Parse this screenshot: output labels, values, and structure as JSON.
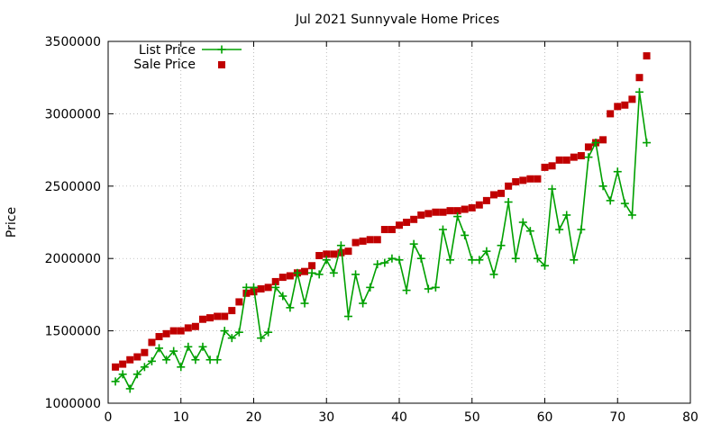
{
  "chart_data": {
    "type": "scatter",
    "title": "Jul 2021 Sunnyvale Home Prices",
    "xlabel": "",
    "ylabel": "Price",
    "xlim": [
      0,
      80
    ],
    "ylim": [
      1000000,
      3500000
    ],
    "x_ticks": [
      0,
      10,
      20,
      30,
      40,
      50,
      60,
      70,
      80
    ],
    "y_ticks": [
      1000000,
      1500000,
      2000000,
      2500000,
      3000000,
      3500000
    ],
    "x_tick_labels": [
      "0",
      "10",
      "20",
      "30",
      "40",
      "50",
      "60",
      "70",
      "80"
    ],
    "y_tick_labels": [
      "1000000",
      "1500000",
      "2000000",
      "2500000",
      "3000000",
      "3500000"
    ],
    "grid": true,
    "legend_position": "top-left",
    "series": [
      {
        "name": "List Price",
        "style": "lines-points",
        "color": "#00a000",
        "x": [
          1,
          2,
          3,
          4,
          5,
          6,
          7,
          8,
          9,
          10,
          11,
          12,
          13,
          14,
          15,
          16,
          17,
          18,
          19,
          20,
          21,
          22,
          23,
          24,
          25,
          26,
          27,
          28,
          29,
          30,
          31,
          32,
          33,
          34,
          35,
          36,
          37,
          38,
          39,
          40,
          41,
          42,
          43,
          44,
          45,
          46,
          47,
          48,
          49,
          50,
          51,
          52,
          53,
          54,
          55,
          56,
          57,
          58,
          59,
          60,
          61,
          62,
          63,
          64,
          65,
          66,
          67,
          68,
          69,
          70,
          71,
          72,
          73,
          74
        ],
        "values": [
          1150000,
          1200000,
          1100000,
          1200000,
          1250000,
          1290000,
          1380000,
          1300000,
          1360000,
          1250000,
          1390000,
          1300000,
          1390000,
          1300000,
          1300000,
          1500000,
          1450000,
          1490000,
          1800000,
          1800000,
          1450000,
          1490000,
          1800000,
          1740000,
          1660000,
          1900000,
          1690000,
          1900000,
          1890000,
          1990000,
          1900000,
          2090000,
          1600000,
          1890000,
          1690000,
          1800000,
          1960000,
          1970000,
          2000000,
          1990000,
          1780000,
          2100000,
          2000000,
          1790000,
          1800000,
          2200000,
          1990000,
          2290000,
          2160000,
          1990000,
          1990000,
          2050000,
          1890000,
          2090000,
          2390000,
          2000000,
          2250000,
          2190000,
          2000000,
          1950000,
          2480000,
          2200000,
          2300000,
          1990000,
          2200000,
          2700000,
          2800000,
          2500000,
          2400000,
          2600000,
          2380000,
          2300000,
          3150000,
          2800000
        ]
      },
      {
        "name": "Sale Price",
        "style": "points",
        "color": "#c00000",
        "x": [
          1,
          2,
          3,
          4,
          5,
          6,
          7,
          8,
          9,
          10,
          11,
          12,
          13,
          14,
          15,
          16,
          17,
          18,
          19,
          20,
          21,
          22,
          23,
          24,
          25,
          26,
          27,
          28,
          29,
          30,
          31,
          32,
          33,
          34,
          35,
          36,
          37,
          38,
          39,
          40,
          41,
          42,
          43,
          44,
          45,
          46,
          47,
          48,
          49,
          50,
          51,
          52,
          53,
          54,
          55,
          56,
          57,
          58,
          59,
          60,
          61,
          62,
          63,
          64,
          65,
          66,
          67,
          68,
          69,
          70,
          71,
          72,
          73,
          74
        ],
        "values": [
          1250000,
          1270000,
          1300000,
          1320000,
          1350000,
          1420000,
          1460000,
          1480000,
          1500000,
          1500000,
          1520000,
          1530000,
          1580000,
          1590000,
          1600000,
          1600000,
          1640000,
          1700000,
          1760000,
          1770000,
          1790000,
          1800000,
          1840000,
          1870000,
          1880000,
          1900000,
          1910000,
          1950000,
          2020000,
          2030000,
          2030000,
          2040000,
          2050000,
          2110000,
          2120000,
          2130000,
          2130000,
          2200000,
          2200000,
          2230000,
          2250000,
          2270000,
          2300000,
          2310000,
          2320000,
          2320000,
          2330000,
          2330000,
          2340000,
          2350000,
          2370000,
          2400000,
          2440000,
          2450000,
          2500000,
          2530000,
          2540000,
          2550000,
          2550000,
          2630000,
          2640000,
          2680000,
          2680000,
          2700000,
          2710000,
          2770000,
          2800000,
          2820000,
          3000000,
          3050000,
          3060000,
          3100000,
          3250000,
          3400000
        ]
      }
    ]
  }
}
